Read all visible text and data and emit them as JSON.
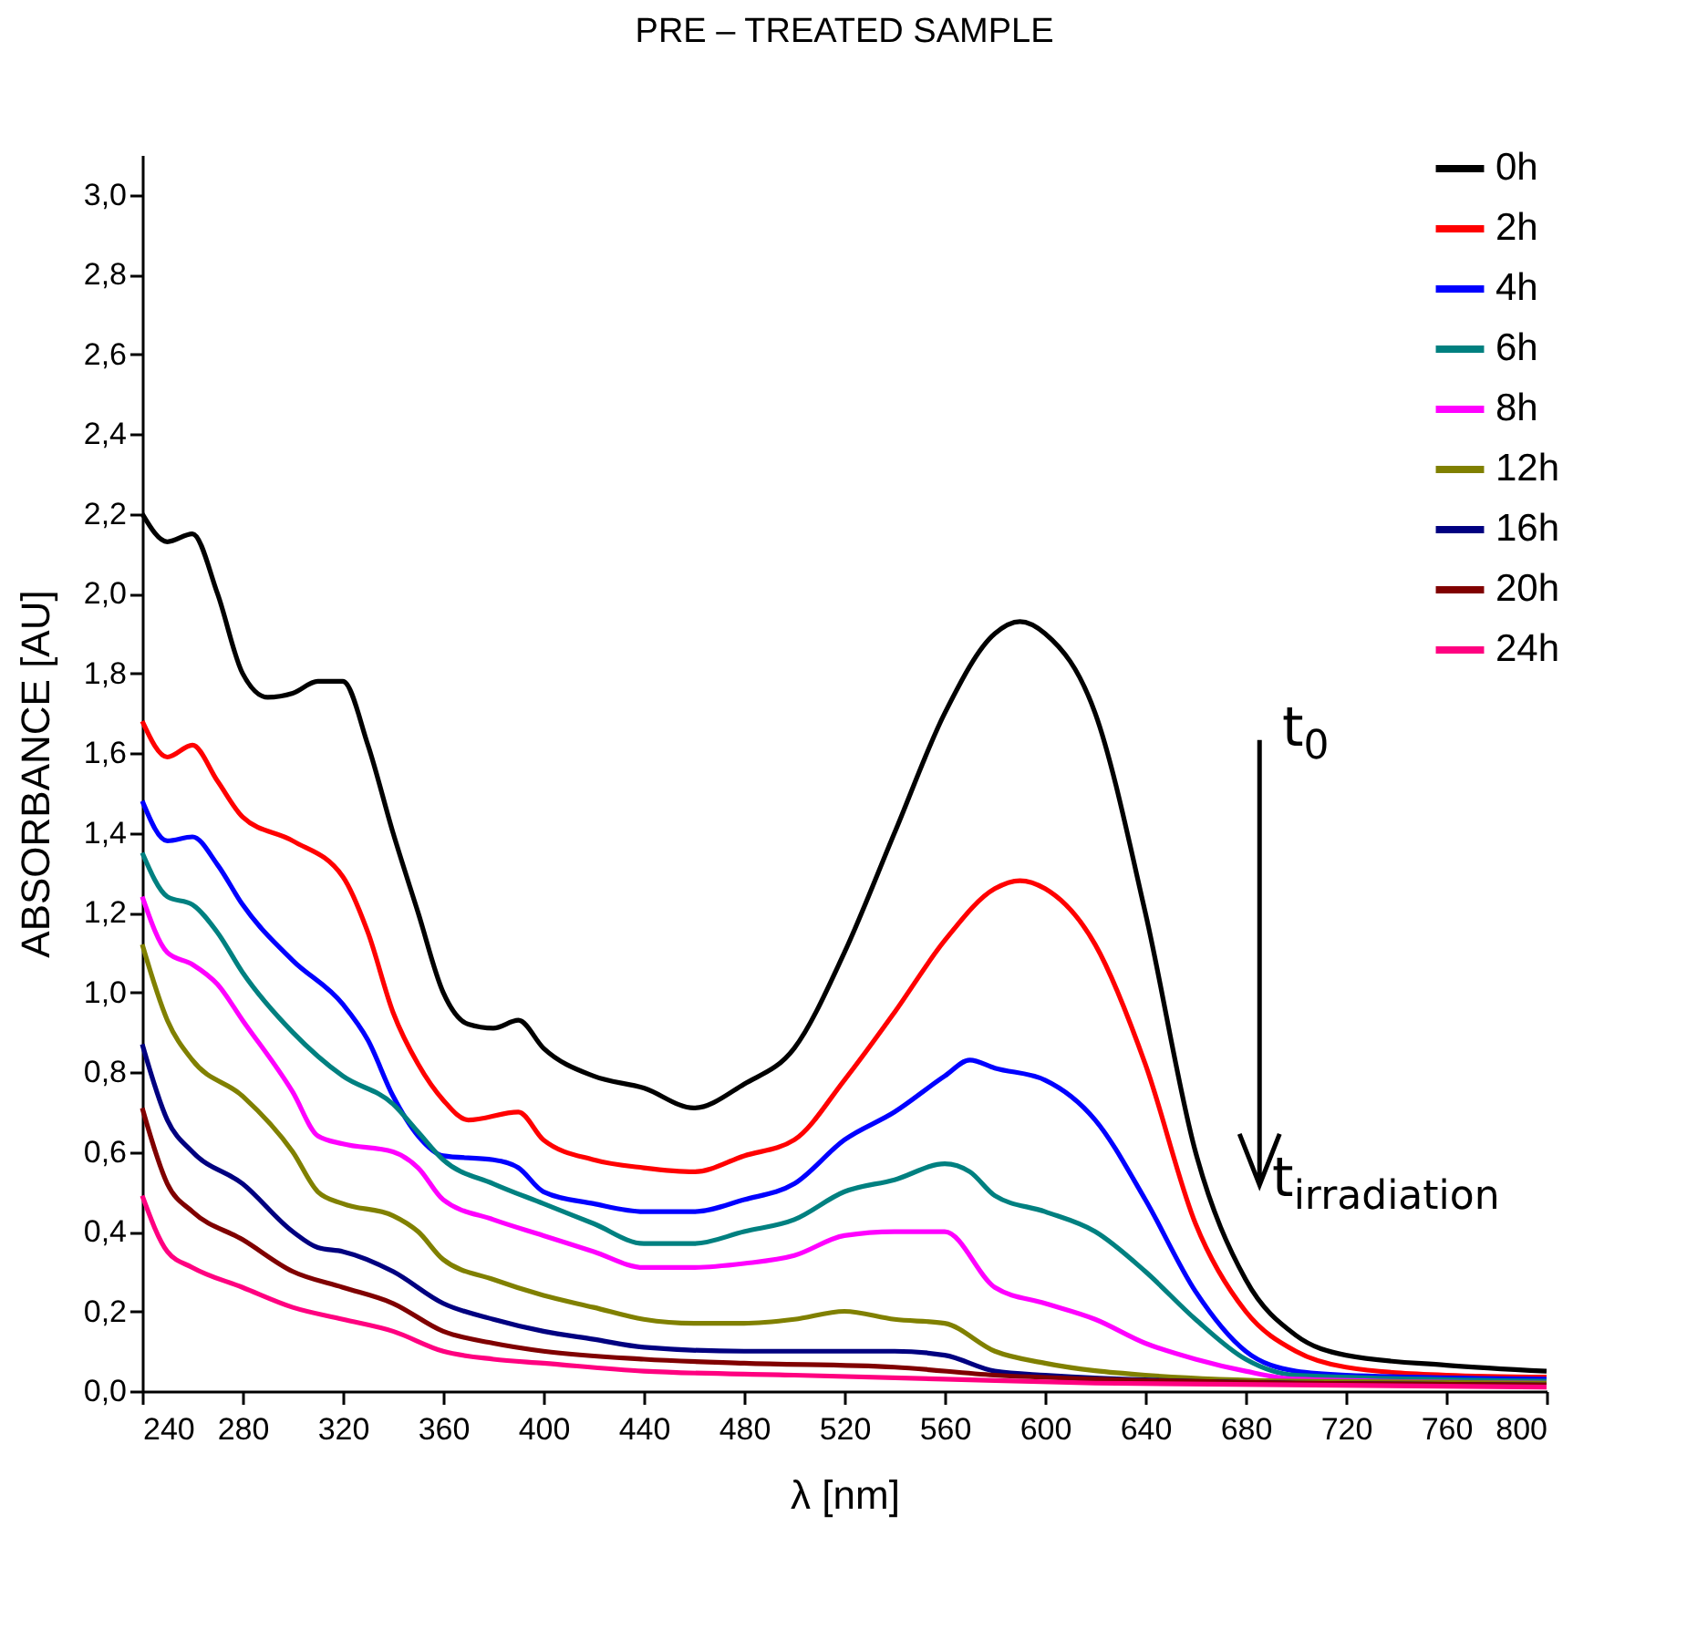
{
  "chart_data": {
    "type": "line",
    "title": "PRE – TREATED SAMPLE",
    "xlabel": "λ [nm]",
    "ylabel": "ABSORBANCE [AU]",
    "xlim": [
      240,
      800
    ],
    "xticks": [
      240,
      280,
      320,
      360,
      400,
      440,
      480,
      520,
      560,
      600,
      640,
      680,
      720,
      760,
      800
    ],
    "ylim": [
      0,
      3.1
    ],
    "yticks": [
      {
        "value": 0,
        "label": "0,0"
      },
      {
        "value": 0.2,
        "label": "0,2"
      },
      {
        "value": 0.4,
        "label": "0,4"
      },
      {
        "value": 0.6,
        "label": "0,6"
      },
      {
        "value": 0.8,
        "label": "0,8"
      },
      {
        "value": 1,
        "label": "1,0"
      },
      {
        "value": 1.2,
        "label": "1,2"
      },
      {
        "value": 1.4,
        "label": "1,4"
      },
      {
        "value": 1.6,
        "label": "1,6"
      },
      {
        "value": 1.8,
        "label": "1,8"
      },
      {
        "value": 2,
        "label": "2,0"
      },
      {
        "value": 2.2,
        "label": "2,2"
      },
      {
        "value": 2.4,
        "label": "2,4"
      },
      {
        "value": 2.6,
        "label": "2,6"
      },
      {
        "value": 2.8,
        "label": "2,8"
      },
      {
        "value": 3,
        "label": "3,0"
      }
    ],
    "grid": false,
    "legend": "top right",
    "marker": "none",
    "line_style": "solid",
    "annotations": [
      "t$_{0}$",
      "t$_{irradiation}$"
    ],
    "series": [
      {
        "name": "0h",
        "color": "#000000",
        "x": [
          240,
          250,
          260,
          270,
          280,
          290,
          300,
          310,
          320,
          330,
          340,
          350,
          360,
          370,
          380,
          390,
          400,
          420,
          440,
          460,
          480,
          500,
          520,
          540,
          560,
          580,
          590,
          600,
          620,
          640,
          660,
          680,
          700,
          720,
          760,
          800
        ],
        "values": [
          2.2,
          2.13,
          2.15,
          2.0,
          1.8,
          1.74,
          1.75,
          1.78,
          1.78,
          1.62,
          1.4,
          1.2,
          1.0,
          0.92,
          0.91,
          0.93,
          0.86,
          0.79,
          0.76,
          0.71,
          0.77,
          0.86,
          1.1,
          1.4,
          1.7,
          1.9,
          1.93,
          1.9,
          1.7,
          1.2,
          0.6,
          0.28,
          0.14,
          0.09,
          0.065,
          0.05
        ]
      },
      {
        "name": "2h",
        "color": "#ff0000",
        "x": [
          240,
          250,
          260,
          270,
          280,
          300,
          320,
          330,
          340,
          350,
          360,
          370,
          390,
          400,
          420,
          440,
          460,
          480,
          500,
          520,
          540,
          560,
          580,
          590,
          600,
          620,
          640,
          660,
          680,
          700,
          720,
          760,
          800
        ],
        "values": [
          1.68,
          1.59,
          1.62,
          1.53,
          1.44,
          1.38,
          1.29,
          1.15,
          0.95,
          0.82,
          0.73,
          0.68,
          0.7,
          0.63,
          0.58,
          0.56,
          0.55,
          0.59,
          0.63,
          0.78,
          0.95,
          1.13,
          1.26,
          1.28,
          1.26,
          1.12,
          0.82,
          0.42,
          0.2,
          0.1,
          0.06,
          0.04,
          0.035
        ]
      },
      {
        "name": "4h",
        "color": "#0000ff",
        "x": [
          240,
          250,
          260,
          270,
          280,
          300,
          320,
          330,
          340,
          350,
          360,
          380,
          390,
          400,
          420,
          440,
          460,
          480,
          500,
          520,
          540,
          560,
          570,
          580,
          600,
          620,
          640,
          660,
          680,
          700,
          720,
          800
        ],
        "values": [
          1.48,
          1.38,
          1.39,
          1.32,
          1.22,
          1.08,
          0.97,
          0.88,
          0.74,
          0.64,
          0.59,
          0.58,
          0.56,
          0.5,
          0.47,
          0.45,
          0.45,
          0.48,
          0.52,
          0.63,
          0.7,
          0.79,
          0.83,
          0.81,
          0.78,
          0.68,
          0.48,
          0.25,
          0.1,
          0.05,
          0.04,
          0.03
        ]
      },
      {
        "name": "6h",
        "color": "#008080",
        "x": [
          240,
          250,
          260,
          270,
          280,
          300,
          320,
          340,
          350,
          360,
          380,
          400,
          420,
          440,
          460,
          480,
          500,
          520,
          540,
          560,
          570,
          580,
          600,
          620,
          640,
          660,
          680,
          700,
          800
        ],
        "values": [
          1.35,
          1.24,
          1.22,
          1.15,
          1.05,
          0.9,
          0.79,
          0.72,
          0.65,
          0.58,
          0.52,
          0.47,
          0.42,
          0.37,
          0.37,
          0.4,
          0.43,
          0.5,
          0.53,
          0.57,
          0.55,
          0.49,
          0.45,
          0.4,
          0.3,
          0.18,
          0.08,
          0.04,
          0.025
        ]
      },
      {
        "name": "8h",
        "color": "#ff00ff",
        "x": [
          240,
          250,
          260,
          270,
          280,
          300,
          310,
          320,
          340,
          350,
          360,
          380,
          400,
          420,
          440,
          460,
          480,
          500,
          520,
          540,
          560,
          580,
          600,
          620,
          640,
          660,
          680,
          700,
          800
        ],
        "values": [
          1.24,
          1.1,
          1.07,
          1.02,
          0.93,
          0.75,
          0.64,
          0.62,
          0.6,
          0.56,
          0.48,
          0.43,
          0.39,
          0.35,
          0.31,
          0.31,
          0.32,
          0.34,
          0.39,
          0.4,
          0.4,
          0.26,
          0.22,
          0.18,
          0.12,
          0.08,
          0.05,
          0.03,
          0.02
        ]
      },
      {
        "name": "12h",
        "color": "#808000",
        "x": [
          240,
          250,
          260,
          280,
          300,
          310,
          320,
          340,
          350,
          360,
          380,
          400,
          420,
          440,
          460,
          480,
          500,
          520,
          540,
          560,
          580,
          600,
          640,
          700,
          800
        ],
        "values": [
          1.12,
          0.93,
          0.83,
          0.74,
          0.6,
          0.5,
          0.47,
          0.44,
          0.4,
          0.33,
          0.28,
          0.24,
          0.21,
          0.18,
          0.17,
          0.17,
          0.18,
          0.2,
          0.18,
          0.17,
          0.1,
          0.07,
          0.04,
          0.025,
          0.02
        ]
      },
      {
        "name": "16h",
        "color": "#000080",
        "x": [
          240,
          250,
          260,
          280,
          300,
          310,
          320,
          340,
          360,
          380,
          400,
          420,
          440,
          480,
          520,
          540,
          560,
          580,
          600,
          700,
          800
        ],
        "values": [
          0.87,
          0.68,
          0.6,
          0.52,
          0.4,
          0.36,
          0.35,
          0.3,
          0.22,
          0.18,
          0.15,
          0.13,
          0.11,
          0.1,
          0.1,
          0.1,
          0.09,
          0.05,
          0.04,
          0.02,
          0.015
        ]
      },
      {
        "name": "20h",
        "color": "#800000",
        "x": [
          240,
          250,
          260,
          280,
          300,
          320,
          340,
          360,
          380,
          400,
          440,
          480,
          540,
          580,
          620,
          700,
          800
        ],
        "values": [
          0.71,
          0.52,
          0.45,
          0.38,
          0.3,
          0.26,
          0.22,
          0.15,
          0.12,
          0.1,
          0.08,
          0.07,
          0.06,
          0.04,
          0.03,
          0.02,
          0.015
        ]
      },
      {
        "name": "24h",
        "color": "#ff0080",
        "x": [
          240,
          250,
          260,
          280,
          300,
          320,
          340,
          360,
          380,
          400,
          440,
          500,
          560,
          620,
          800
        ],
        "values": [
          0.49,
          0.35,
          0.31,
          0.26,
          0.21,
          0.18,
          0.15,
          0.1,
          0.08,
          0.07,
          0.05,
          0.04,
          0.03,
          0.02,
          0.01
        ]
      }
    ]
  }
}
